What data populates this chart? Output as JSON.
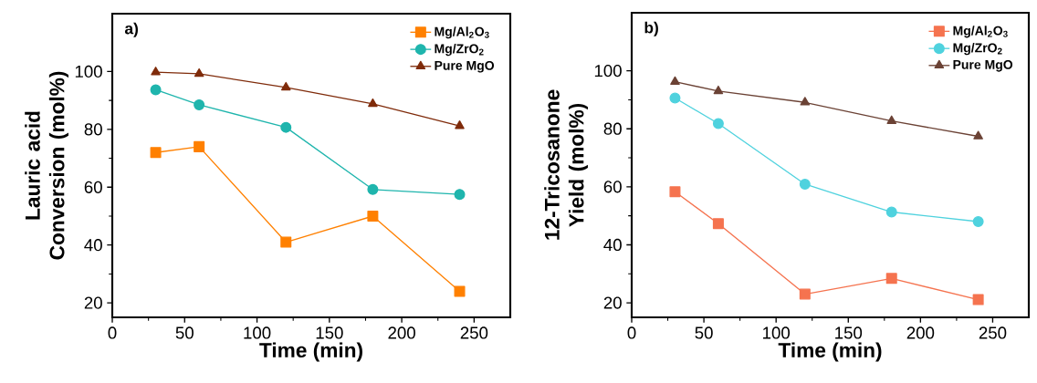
{
  "chart_data": [
    {
      "type": "line",
      "xlabel": "Time (min)",
      "ylabel": "Lauric acid Conversion (mol%)",
      "annotations": [
        "a)"
      ],
      "x": [
        30,
        60,
        120,
        180,
        240
      ],
      "xlim": [
        0,
        275
      ],
      "ylim": [
        15,
        120
      ],
      "xticks": [
        0,
        50,
        100,
        150,
        200,
        250
      ],
      "yticks": [
        20,
        40,
        60,
        80,
        100
      ],
      "legend": "top right",
      "series": [
        {
          "name": "Mg/Al$_{2}$O$_{3}$",
          "color": "#ff8000",
          "marker": "square",
          "values": [
            72,
            74,
            41,
            50,
            24
          ]
        },
        {
          "name": "Mg/ZrO$_{2}$",
          "color": "#1fb5ad",
          "marker": "circle",
          "values": [
            93.7,
            88.5,
            80.7,
            59.2,
            57.5
          ]
        },
        {
          "name": "Pure MgO",
          "color": "#7f2b0a",
          "marker": "triangle",
          "values": [
            99.8,
            99.2,
            94.5,
            88.8,
            81.2
          ]
        }
      ]
    },
    {
      "type": "line",
      "xlabel": "Time (min)",
      "ylabel": "12-Tricosanone Yield (mol%)",
      "annotations": [
        "b)"
      ],
      "x": [
        30,
        60,
        120,
        180,
        240
      ],
      "xlim": [
        0,
        275
      ],
      "ylim": [
        15,
        120
      ],
      "xticks": [
        0,
        50,
        100,
        150,
        200,
        250
      ],
      "yticks": [
        20,
        40,
        60,
        80,
        100
      ],
      "legend": "top right",
      "series": [
        {
          "name": "Mg/Al$_{2}$O$_{3}$",
          "color": "#f5734f",
          "marker": "square",
          "values": [
            58.3,
            47.3,
            23,
            28.4,
            21.1
          ]
        },
        {
          "name": "Mg/ZrO$_{2}$",
          "color": "#4fd2de",
          "marker": "circle",
          "values": [
            90.6,
            81.8,
            60.9,
            51.3,
            48
          ]
        },
        {
          "name": "Pure MgO",
          "color": "#6b4235",
          "marker": "triangle",
          "values": [
            96.2,
            93,
            89.1,
            82.7,
            77.4
          ]
        }
      ]
    }
  ]
}
